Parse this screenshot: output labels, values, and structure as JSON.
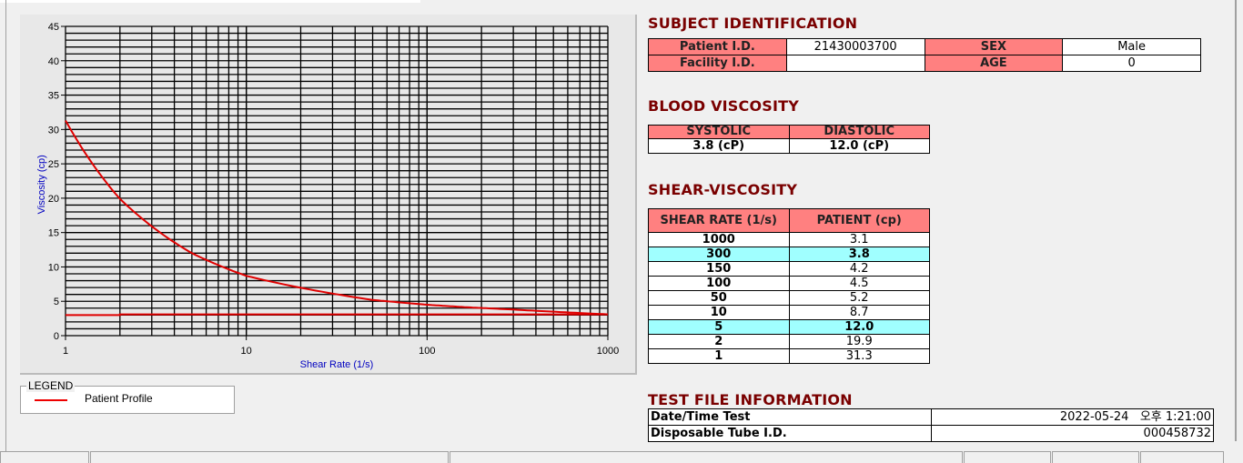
{
  "chart_data": {
    "type": "line",
    "xlabel": "Shear Rate (1/s)",
    "ylabel": "Viscosity (cp)",
    "x_scale": "log",
    "xlim": [
      1,
      1000
    ],
    "ylim": [
      0,
      45
    ],
    "x_ticks": [
      "1",
      "10",
      "100",
      "1000"
    ],
    "y_ticks": [
      "0",
      "5",
      "10",
      "15",
      "20",
      "25",
      "30",
      "35",
      "40",
      "45"
    ],
    "grid": true,
    "legend_position": "bottom-left-outside",
    "series": [
      {
        "name": "Patient Profile",
        "color": "#e00000",
        "x": [
          1,
          2,
          5,
          10,
          50,
          100,
          150,
          300,
          1000
        ],
        "y": [
          31.3,
          19.9,
          12.0,
          8.7,
          5.2,
          4.5,
          4.2,
          3.8,
          3.1
        ]
      },
      {
        "color": "#e00000",
        "x": [
          1,
          2,
          2,
          1000
        ],
        "y": [
          3.0,
          3.0,
          3.1,
          3.1
        ]
      }
    ]
  },
  "legend": {
    "title": "LEGEND",
    "items": [
      {
        "label": "Patient Profile",
        "color": "#e00000"
      }
    ]
  },
  "subject": {
    "title": "SUBJECT IDENTIFICATION",
    "patient_id_label": "Patient I.D.",
    "patient_id": "21430003700",
    "sex_label": "SEX",
    "sex": "Male",
    "facility_label": "Facility I.D.",
    "facility": "",
    "age_label": "AGE",
    "age": "0"
  },
  "blood": {
    "title": "BLOOD VISCOSITY",
    "systolic_label": "SYSTOLIC",
    "diastolic_label": "DIASTOLIC",
    "systolic": "3.8 (cP)",
    "diastolic": "12.0 (cP)"
  },
  "shear": {
    "title": "SHEAR-VISCOSITY",
    "col1": "SHEAR RATE (1/s)",
    "col2": "PATIENT (cp)",
    "rows": [
      {
        "rate": "1000",
        "value": "3.1",
        "highlight": false
      },
      {
        "rate": "300",
        "value": "3.8",
        "highlight": true
      },
      {
        "rate": "150",
        "value": "4.2",
        "highlight": false
      },
      {
        "rate": "100",
        "value": "4.5",
        "highlight": false
      },
      {
        "rate": "50",
        "value": "5.2",
        "highlight": false
      },
      {
        "rate": "10",
        "value": "8.7",
        "highlight": false
      },
      {
        "rate": "5",
        "value": "12.0",
        "highlight": true
      },
      {
        "rate": "2",
        "value": "19.9",
        "highlight": false
      },
      {
        "rate": "1",
        "value": "31.3",
        "highlight": false
      }
    ]
  },
  "testfile": {
    "title": "TEST FILE INFORMATION",
    "date_label": "Date/Time Test",
    "date": "2022-05-24   오후 1:21:00",
    "tube_label": "Disposable Tube I.D.",
    "tube": "000458732"
  },
  "colors": {
    "header": "#ff8080",
    "highlight": "#a0ffff",
    "title": "#7a0000"
  }
}
